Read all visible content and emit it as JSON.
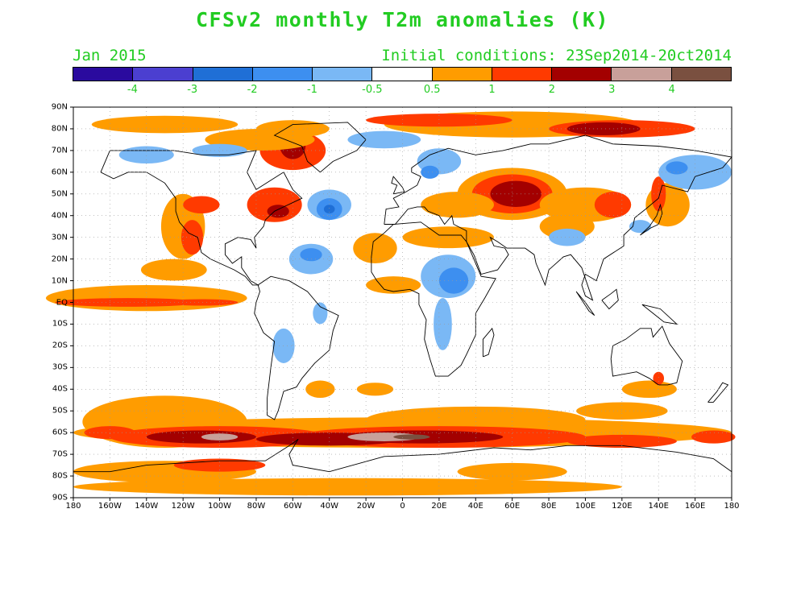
{
  "title": "CFSv2 monthly T2m anomalies (K)",
  "valid_label": "Jan 2015",
  "init_label": "Initial conditions: 23Sep2014-20ct2014",
  "colorbar": {
    "colors": [
      "#2a0a9e",
      "#4b3fd0",
      "#1f6fd6",
      "#3d8ff0",
      "#7ab8f5",
      "#ffffff",
      "#ff9c00",
      "#ff3a00",
      "#a30000",
      "#c8a09a",
      "#7a5040"
    ],
    "labels": [
      "-4",
      "-3",
      "-2",
      "-1",
      "-0.5",
      "0.5",
      "1",
      "2",
      "3",
      "4"
    ]
  },
  "lat_labels": [
    "90N",
    "80N",
    "70N",
    "60N",
    "50N",
    "40N",
    "30N",
    "20N",
    "10N",
    "EQ",
    "10S",
    "20S",
    "30S",
    "40S",
    "50S",
    "60S",
    "70S",
    "80S",
    "90S"
  ],
  "lon_labels": [
    "180",
    "160W",
    "140W",
    "120W",
    "100W",
    "80W",
    "60W",
    "40W",
    "20W",
    "0",
    "20E",
    "40E",
    "60E",
    "80E",
    "100E",
    "120E",
    "140E",
    "160E",
    "180"
  ]
}
